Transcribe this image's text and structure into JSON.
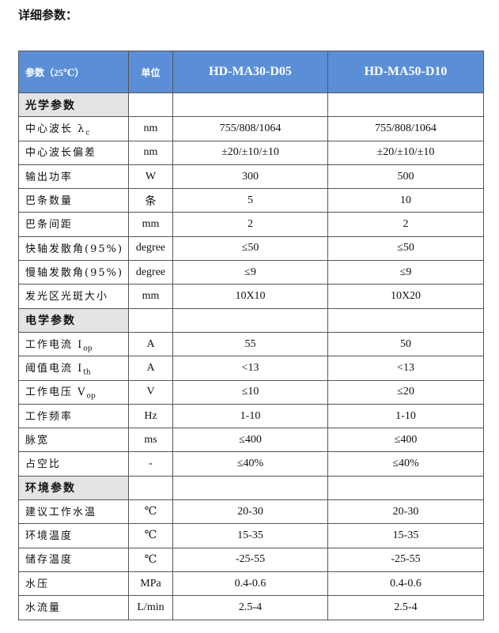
{
  "title": "详细参数：",
  "header": {
    "param": "参数（25℃）",
    "unit": "单位",
    "model1": "HD-MA30-D05",
    "model2": "HD-MA50-D10"
  },
  "sections": [
    {
      "name": "光学参数",
      "rows": [
        {
          "name": "中心波长 λ",
          "sub": "c",
          "unit": "nm",
          "v1": "755/808/1064",
          "v2": "755/808/1064"
        },
        {
          "name": "中心波长偏差",
          "sub": "",
          "unit": "nm",
          "v1": "±20/±10/±10",
          "v2": "±20/±10/±10"
        },
        {
          "name": "输出功率",
          "sub": "",
          "unit": "W",
          "v1": "300",
          "v2": "500"
        },
        {
          "name": "巴条数量",
          "sub": "",
          "unit": "条",
          "v1": "5",
          "v2": "10"
        },
        {
          "name": "巴条间距",
          "sub": "",
          "unit": "mm",
          "v1": "2",
          "v2": "2"
        },
        {
          "name": "快轴发散角(95%)",
          "sub": "",
          "unit": "degree",
          "v1": "≤50",
          "v2": "≤50"
        },
        {
          "name": "慢轴发散角(95%)",
          "sub": "",
          "unit": "degree",
          "v1": "≤9",
          "v2": "≤9"
        },
        {
          "name": "发光区光斑大小",
          "sub": "",
          "unit": "mm",
          "v1": "10X10",
          "v2": "10X20"
        }
      ]
    },
    {
      "name": "电学参数",
      "rows": [
        {
          "name": "工作电流 I",
          "sub": "op",
          "unit": "A",
          "v1": "55",
          "v2": "50"
        },
        {
          "name": "阈值电流 I",
          "sub": "th",
          "unit": "A",
          "v1": "<13",
          "v2": "<13"
        },
        {
          "name": "工作电压 V",
          "sub": "op",
          "unit": "V",
          "v1": "≤10",
          "v2": "≤20"
        },
        {
          "name": "工作频率",
          "sub": "",
          "unit": "Hz",
          "v1": "1-10",
          "v2": "1-10"
        },
        {
          "name": "脉宽",
          "sub": "",
          "unit": "ms",
          "v1": "≤400",
          "v2": "≤400"
        },
        {
          "name": "占空比",
          "sub": "",
          "unit": "-",
          "v1": "≤40%",
          "v2": "≤40%"
        }
      ]
    },
    {
      "name": "环境参数",
      "rows": [
        {
          "name": "建议工作水温",
          "sub": "",
          "unit": "℃",
          "v1": "20-30",
          "v2": "20-30"
        },
        {
          "name": "环境温度",
          "sub": "",
          "unit": "℃",
          "v1": "15-35",
          "v2": "15-35"
        },
        {
          "name": "储存温度",
          "sub": "",
          "unit": "℃",
          "v1": "-25-55",
          "v2": "-25-55"
        },
        {
          "name": "水压",
          "sub": "",
          "unit": "MPa",
          "v1": "0.4-0.6",
          "v2": "0.4-0.6"
        },
        {
          "name": "水流量",
          "sub": "",
          "unit": "L/min",
          "v1": "2.5-4",
          "v2": "2.5-4"
        }
      ]
    }
  ]
}
